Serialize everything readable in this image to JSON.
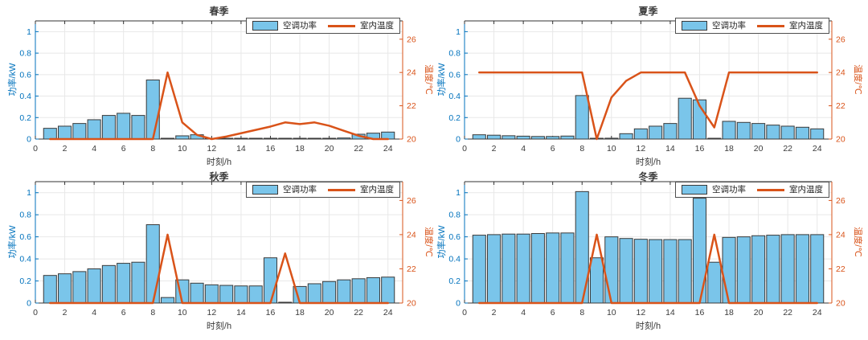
{
  "figure": {
    "background": "#ffffff"
  },
  "colors": {
    "bar_fill": "#7AC5EA",
    "bar_edge": "#3a3a3a",
    "line": "#D95319",
    "left_axis": "#0072BD",
    "right_axis": "#D95319",
    "spine": "#333333",
    "tick_text": "#3a3a3a",
    "grid": "#E8E8E8"
  },
  "chart_data": [
    {
      "type": "bar+line",
      "title": "春季",
      "xlabel": "时刻/h",
      "ylabel_left": "功率/kW",
      "ylabel_right": "温度/℃",
      "legend": [
        "空调功率",
        "室内温度"
      ],
      "legend_position": "top-right",
      "grid": true,
      "xlim": [
        0,
        25
      ],
      "xticks": [
        0,
        2,
        4,
        6,
        8,
        10,
        12,
        14,
        16,
        18,
        20,
        22,
        24
      ],
      "ylim_left": [
        0,
        1.1
      ],
      "yticks_left": [
        0,
        0.2,
        0.4,
        0.6,
        0.8,
        1
      ],
      "ylim_right": [
        20,
        27.1
      ],
      "yticks_right": [
        20,
        22,
        24,
        26
      ],
      "x": [
        1,
        2,
        3,
        4,
        5,
        6,
        7,
        8,
        9,
        10,
        11,
        12,
        13,
        14,
        15,
        16,
        17,
        18,
        19,
        20,
        21,
        22,
        23,
        24
      ],
      "series": [
        {
          "name": "空调功率",
          "type": "bar",
          "axis": "left",
          "values": [
            0.1,
            0.12,
            0.145,
            0.18,
            0.22,
            0.24,
            0.22,
            0.55,
            0.005,
            0.03,
            0.04,
            0.002,
            0.002,
            0.002,
            0.002,
            0.002,
            0.002,
            0.002,
            0.002,
            0.002,
            0.01,
            0.045,
            0.055,
            0.065
          ]
        },
        {
          "name": "室内温度",
          "type": "line",
          "axis": "right",
          "values": [
            20,
            20,
            20,
            20,
            20,
            20,
            20,
            20,
            24,
            21,
            20.25,
            20,
            20.15,
            20.35,
            20.55,
            20.75,
            21,
            20.9,
            21,
            20.8,
            20.5,
            20.2,
            20,
            20
          ]
        }
      ]
    },
    {
      "type": "bar+line",
      "title": "夏季",
      "xlabel": "时刻/h",
      "ylabel_left": "功率/kW",
      "ylabel_right": "温度/℃",
      "legend": [
        "空调功率",
        "室内温度"
      ],
      "legend_position": "top-right",
      "grid": true,
      "xlim": [
        0,
        25
      ],
      "xticks": [
        0,
        2,
        4,
        6,
        8,
        10,
        12,
        14,
        16,
        18,
        20,
        22,
        24
      ],
      "ylim_left": [
        0,
        1.1
      ],
      "yticks_left": [
        0,
        0.2,
        0.4,
        0.6,
        0.8,
        1
      ],
      "ylim_right": [
        20,
        27.1
      ],
      "yticks_right": [
        20,
        22,
        24,
        26
      ],
      "x": [
        1,
        2,
        3,
        4,
        5,
        6,
        7,
        8,
        9,
        10,
        11,
        12,
        13,
        14,
        15,
        16,
        17,
        18,
        19,
        20,
        21,
        22,
        23,
        24
      ],
      "series": [
        {
          "name": "空调功率",
          "type": "bar",
          "axis": "left",
          "values": [
            0.04,
            0.036,
            0.031,
            0.027,
            0.024,
            0.024,
            0.028,
            0.405,
            0.003,
            0.008,
            0.05,
            0.095,
            0.12,
            0.145,
            0.38,
            0.365,
            0.005,
            0.165,
            0.155,
            0.145,
            0.13,
            0.12,
            0.11,
            0.095
          ]
        },
        {
          "name": "室内温度",
          "type": "line",
          "axis": "right",
          "values": [
            24,
            24,
            24,
            24,
            24,
            24,
            24,
            24,
            20,
            22.5,
            23.5,
            24,
            24,
            24,
            24,
            22,
            20.7,
            24,
            24,
            24,
            24,
            24,
            24,
            24
          ]
        }
      ]
    },
    {
      "type": "bar+line",
      "title": "秋季",
      "xlabel": "时刻/h",
      "ylabel_left": "功率/kW",
      "ylabel_right": "温度/℃",
      "legend": [
        "空调功率",
        "室内温度"
      ],
      "legend_position": "top-right",
      "grid": true,
      "xlim": [
        0,
        25
      ],
      "xticks": [
        0,
        2,
        4,
        6,
        8,
        10,
        12,
        14,
        16,
        18,
        20,
        22,
        24
      ],
      "ylim_left": [
        0,
        1.1
      ],
      "yticks_left": [
        0,
        0.2,
        0.4,
        0.6,
        0.8,
        1
      ],
      "ylim_right": [
        20,
        27.1
      ],
      "yticks_right": [
        20,
        22,
        24,
        26
      ],
      "x": [
        1,
        2,
        3,
        4,
        5,
        6,
        7,
        8,
        9,
        10,
        11,
        12,
        13,
        14,
        15,
        16,
        17,
        18,
        19,
        20,
        21,
        22,
        23,
        24
      ],
      "series": [
        {
          "name": "空调功率",
          "type": "bar",
          "axis": "left",
          "values": [
            0.25,
            0.265,
            0.285,
            0.31,
            0.34,
            0.36,
            0.37,
            0.71,
            0.05,
            0.21,
            0.18,
            0.165,
            0.16,
            0.155,
            0.155,
            0.41,
            0.005,
            0.15,
            0.175,
            0.195,
            0.21,
            0.22,
            0.23,
            0.235
          ]
        },
        {
          "name": "室内温度",
          "type": "line",
          "axis": "right",
          "values": [
            20,
            20,
            20,
            20,
            20,
            20,
            20,
            20,
            24,
            20,
            20,
            20,
            20,
            20,
            20,
            20,
            22.9,
            20,
            20,
            20,
            20,
            20,
            20,
            20
          ]
        }
      ]
    },
    {
      "type": "bar+line",
      "title": "冬季",
      "xlabel": "时刻/h",
      "ylabel_left": "功率/kW",
      "ylabel_right": "温度/℃",
      "legend": [
        "空调功率",
        "室内温度"
      ],
      "legend_position": "top-right",
      "grid": true,
      "xlim": [
        0,
        25
      ],
      "xticks": [
        0,
        2,
        4,
        6,
        8,
        10,
        12,
        14,
        16,
        18,
        20,
        22,
        24
      ],
      "ylim_left": [
        0,
        1.1
      ],
      "yticks_left": [
        0,
        0.2,
        0.4,
        0.6,
        0.8,
        1
      ],
      "ylim_right": [
        20,
        27.1
      ],
      "yticks_right": [
        20,
        22,
        24,
        26
      ],
      "x": [
        1,
        2,
        3,
        4,
        5,
        6,
        7,
        8,
        9,
        10,
        11,
        12,
        13,
        14,
        15,
        16,
        17,
        18,
        19,
        20,
        21,
        22,
        23,
        24
      ],
      "series": [
        {
          "name": "空调功率",
          "type": "bar",
          "axis": "left",
          "values": [
            0.615,
            0.62,
            0.625,
            0.625,
            0.63,
            0.635,
            0.635,
            1.01,
            0.41,
            0.6,
            0.585,
            0.578,
            0.575,
            0.575,
            0.575,
            0.95,
            0.37,
            0.595,
            0.6,
            0.61,
            0.615,
            0.62,
            0.62,
            0.62
          ]
        },
        {
          "name": "室内温度",
          "type": "line",
          "axis": "right",
          "values": [
            20,
            20,
            20,
            20,
            20,
            20,
            20,
            20,
            24,
            20,
            20,
            20,
            20,
            20,
            20,
            20,
            24,
            20,
            20,
            20,
            20,
            20,
            20,
            20
          ]
        }
      ]
    }
  ]
}
